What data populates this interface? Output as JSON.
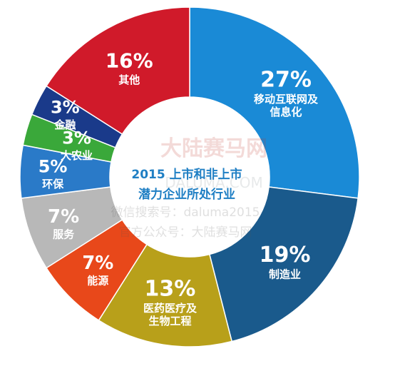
{
  "chart_data": {
    "type": "pie",
    "title_lines": [
      "2015 上市和非上市",
      "潜力企业所处行业"
    ],
    "slices": [
      {
        "label_lines": [
          "移动互联网及",
          "信息化"
        ],
        "percent_label": "27%",
        "value": 27,
        "color": "#1a8ad6"
      },
      {
        "label_lines": [
          "制造业"
        ],
        "percent_label": "19%",
        "value": 19,
        "color": "#1a5a8c"
      },
      {
        "label_lines": [
          "医药医疗及",
          "生物工程"
        ],
        "percent_label": "13%",
        "value": 13,
        "color": "#b8a01a"
      },
      {
        "label_lines": [
          "能源"
        ],
        "percent_label": "7%",
        "value": 7,
        "color": "#e8481a"
      },
      {
        "label_lines": [
          "服务"
        ],
        "percent_label": "7%",
        "value": 7,
        "color": "#b8b8b8"
      },
      {
        "label_lines": [
          "环保"
        ],
        "percent_label": "5%",
        "value": 5,
        "color": "#2a7ac8"
      },
      {
        "label_lines": [
          "大农业"
        ],
        "percent_label": "3%",
        "value": 3,
        "color": "#3aa83a"
      },
      {
        "label_lines": [
          "金融"
        ],
        "percent_label": "3%",
        "value": 3,
        "color": "#1a3a8a"
      },
      {
        "label_lines": [
          "其他"
        ],
        "percent_label": "16%",
        "value": 16,
        "color": "#d01a2a"
      }
    ]
  },
  "watermark": {
    "brand": "大陆赛马网",
    "domain": "DALUMA.COM",
    "line1": "微信搜索号：daluma2015",
    "line2": "官方公众号：大陆赛马网"
  }
}
